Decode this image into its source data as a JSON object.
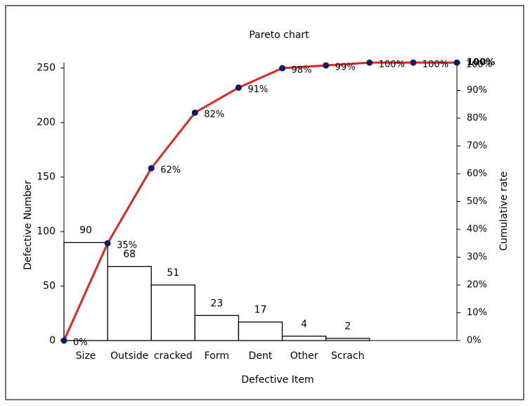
{
  "chart_data": {
    "type": "pareto",
    "title": "Pareto chart",
    "x_label": "Defective Item",
    "y_label": "Defective Number",
    "y2_label": "Cumulative rate",
    "categories": [
      "Size",
      "Outside",
      "cracked",
      "Form",
      "Dent",
      "Other",
      "Scrach",
      null,
      null
    ],
    "values": [
      90,
      68,
      51,
      23,
      17,
      4,
      2,
      null,
      null
    ],
    "bar_color": "#ffffff",
    "bar_edge_color": "#000000",
    "ylim": [
      0,
      255
    ],
    "yticks": [
      0,
      50,
      100,
      150,
      200,
      250
    ],
    "y2lim": [
      0,
      100
    ],
    "y2ticks": [
      {
        "value": 0,
        "label": "0%"
      },
      {
        "value": 10,
        "label": "10%"
      },
      {
        "value": 20,
        "label": "20%"
      },
      {
        "value": 30,
        "label": "30%"
      },
      {
        "value": 40,
        "label": "40%"
      },
      {
        "value": 50,
        "label": "50%"
      },
      {
        "value": 60,
        "label": "60%"
      },
      {
        "value": 70,
        "label": "70%"
      },
      {
        "value": 80,
        "label": "80%"
      },
      {
        "value": 90,
        "label": "90%"
      },
      {
        "value": 100,
        "label": "100%"
      }
    ],
    "cumulative": {
      "axis": "y2",
      "color": "#e8221c",
      "marker_color": "#0b1a6b",
      "values": [
        0,
        35,
        62,
        82,
        91,
        98,
        99,
        100,
        100,
        100
      ],
      "value_labels": [
        "0%",
        "35%",
        "62%",
        "82%",
        "91%",
        "98%",
        "99%",
        "100%",
        "100%",
        "100%"
      ]
    },
    "grid": false
  }
}
